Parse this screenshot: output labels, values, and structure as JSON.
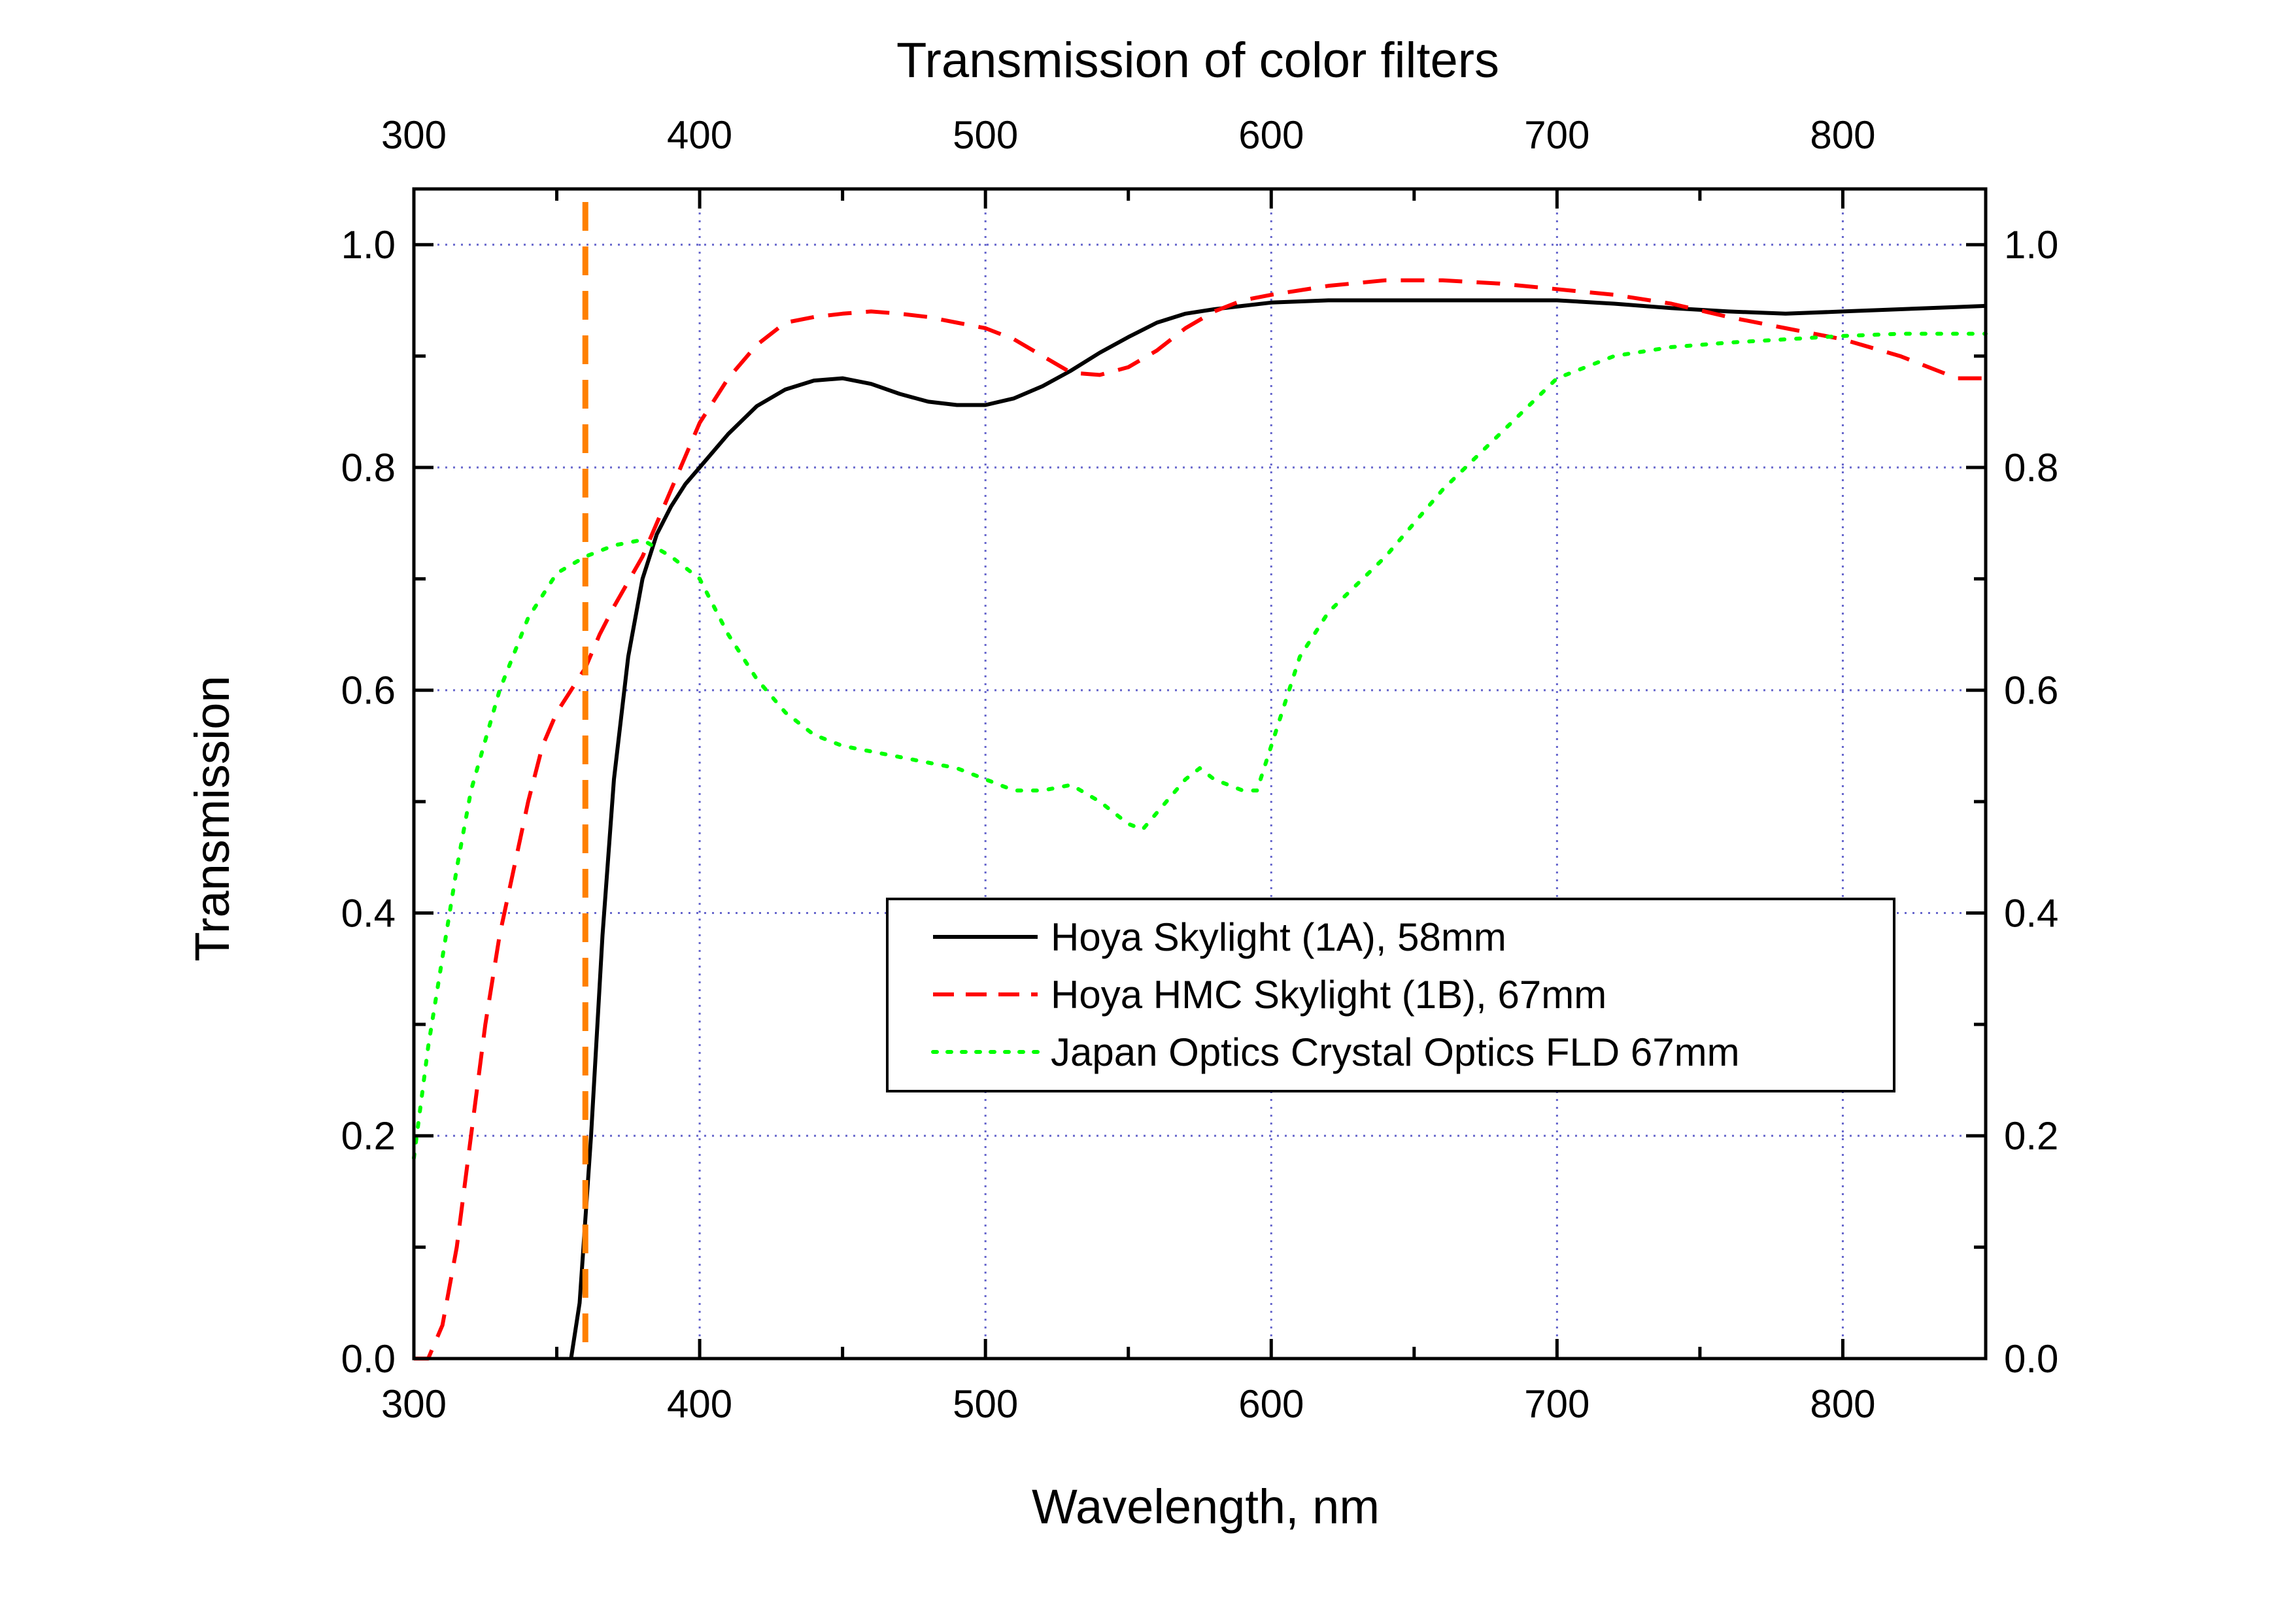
{
  "chart_data": {
    "type": "line",
    "title": "Transmission of color filters",
    "xlabel": "Wavelength, nm",
    "ylabel": "Transmission",
    "xlim": [
      300,
      850
    ],
    "ylim": [
      0.0,
      1.05
    ],
    "x_ticks": [
      300,
      400,
      500,
      600,
      700,
      800
    ],
    "x_tick_labels": [
      "300",
      "400",
      "500",
      "600",
      "700",
      "800"
    ],
    "y_ticks": [
      0.0,
      0.2,
      0.4,
      0.6,
      0.8,
      1.0
    ],
    "y_tick_labels": [
      "0.0",
      "0.2",
      "0.4",
      "0.6",
      "0.8",
      "1.0"
    ],
    "top_axis_ticks": true,
    "right_axis_ticks": true,
    "grid": true,
    "legend_position": "center-right",
    "vertical_marker": {
      "x": 360,
      "color": "#ff8000",
      "style": "dashed"
    },
    "series": [
      {
        "name": "Hoya Skylight (1A), 58mm",
        "color": "#000000",
        "style": "solid",
        "x": [
          355,
          358,
          362,
          366,
          370,
          375,
          380,
          385,
          390,
          395,
          400,
          410,
          420,
          430,
          440,
          450,
          460,
          470,
          480,
          490,
          500,
          510,
          520,
          530,
          540,
          550,
          560,
          570,
          580,
          590,
          600,
          620,
          640,
          660,
          680,
          700,
          720,
          740,
          760,
          780,
          800,
          820,
          840,
          850
        ],
        "y": [
          0.0,
          0.05,
          0.2,
          0.38,
          0.52,
          0.63,
          0.7,
          0.74,
          0.765,
          0.785,
          0.8,
          0.83,
          0.855,
          0.87,
          0.878,
          0.88,
          0.875,
          0.866,
          0.859,
          0.856,
          0.856,
          0.862,
          0.873,
          0.887,
          0.903,
          0.917,
          0.93,
          0.938,
          0.942,
          0.945,
          0.948,
          0.95,
          0.95,
          0.95,
          0.95,
          0.95,
          0.947,
          0.943,
          0.94,
          0.938,
          0.94,
          0.942,
          0.944,
          0.945
        ]
      },
      {
        "name": "Hoya HMC Skylight (1B), 67mm",
        "color": "#ff0000",
        "style": "dashed",
        "x": [
          300,
          305,
          310,
          315,
          320,
          325,
          330,
          335,
          340,
          345,
          350,
          355,
          360,
          365,
          370,
          380,
          390,
          400,
          410,
          420,
          430,
          440,
          450,
          460,
          470,
          480,
          490,
          500,
          510,
          520,
          530,
          540,
          550,
          560,
          570,
          580,
          590,
          600,
          620,
          640,
          660,
          680,
          700,
          720,
          740,
          760,
          780,
          800,
          820,
          840,
          850
        ],
        "y": [
          0.0,
          0.0,
          0.03,
          0.1,
          0.2,
          0.3,
          0.38,
          0.44,
          0.5,
          0.55,
          0.58,
          0.6,
          0.62,
          0.65,
          0.675,
          0.72,
          0.78,
          0.84,
          0.88,
          0.91,
          0.93,
          0.935,
          0.938,
          0.94,
          0.938,
          0.935,
          0.93,
          0.925,
          0.915,
          0.9,
          0.885,
          0.883,
          0.89,
          0.905,
          0.925,
          0.94,
          0.95,
          0.955,
          0.963,
          0.968,
          0.968,
          0.965,
          0.96,
          0.955,
          0.947,
          0.935,
          0.925,
          0.915,
          0.9,
          0.88,
          0.88
        ]
      },
      {
        "name": "Japan Optics Crystal Optics FLD 67mm",
        "color": "#00ff00",
        "style": "dotted",
        "x": [
          300,
          305,
          310,
          315,
          320,
          330,
          340,
          350,
          360,
          370,
          380,
          390,
          400,
          410,
          420,
          430,
          440,
          450,
          460,
          470,
          480,
          490,
          500,
          510,
          520,
          530,
          540,
          550,
          555,
          560,
          570,
          575,
          580,
          590,
          595,
          600,
          610,
          620,
          640,
          660,
          680,
          700,
          720,
          740,
          760,
          780,
          800,
          820,
          840,
          850
        ],
        "y": [
          0.18,
          0.28,
          0.36,
          0.44,
          0.51,
          0.6,
          0.665,
          0.705,
          0.72,
          0.73,
          0.735,
          0.72,
          0.7,
          0.65,
          0.61,
          0.58,
          0.56,
          0.55,
          0.545,
          0.54,
          0.535,
          0.53,
          0.52,
          0.51,
          0.51,
          0.515,
          0.5,
          0.48,
          0.475,
          0.49,
          0.52,
          0.53,
          0.52,
          0.51,
          0.51,
          0.55,
          0.63,
          0.67,
          0.72,
          0.78,
          0.83,
          0.88,
          0.9,
          0.908,
          0.912,
          0.915,
          0.918,
          0.92,
          0.92,
          0.92
        ]
      }
    ]
  }
}
